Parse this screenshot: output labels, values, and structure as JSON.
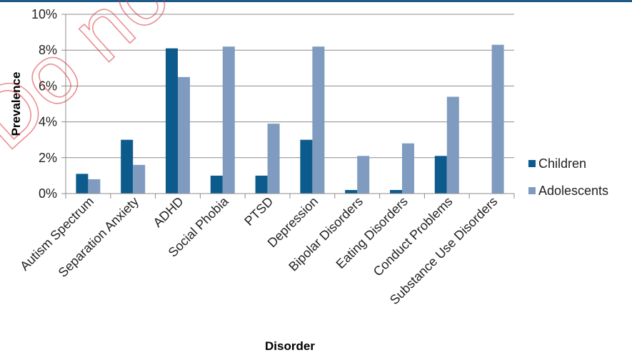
{
  "watermark": "Do not",
  "colors": {
    "children": "#0d5a8c",
    "adolescents": "#7f9cc0",
    "axis": "#8c8c8c",
    "grid": "#8c8c8c",
    "header_rule": "#1f5a87",
    "watermark": "#d9333a"
  },
  "chart_data": {
    "type": "bar",
    "title": "",
    "xlabel": "Disorder",
    "ylabel": "Prevalence",
    "ylim": [
      0,
      10
    ],
    "yticks": [
      "0%",
      "2%",
      "4%",
      "6%",
      "8%",
      "10%"
    ],
    "grid": true,
    "legend_position": "right",
    "categories": [
      "Autism Spectrum",
      "Separation Anxiety",
      "ADHD",
      "Social Phobia",
      "PTSD",
      "Depression",
      "Bipolar Disorders",
      "Eating Disorders",
      "Conduct Problems",
      "Substance Use Disorders"
    ],
    "series": [
      {
        "name": "Children",
        "values": [
          1.1,
          3.0,
          8.1,
          1.0,
          1.0,
          3.0,
          0.2,
          0.2,
          2.1,
          null
        ]
      },
      {
        "name": "Adolescents",
        "values": [
          0.8,
          1.6,
          6.5,
          8.2,
          3.9,
          8.2,
          2.1,
          2.8,
          5.4,
          8.3
        ]
      }
    ]
  }
}
